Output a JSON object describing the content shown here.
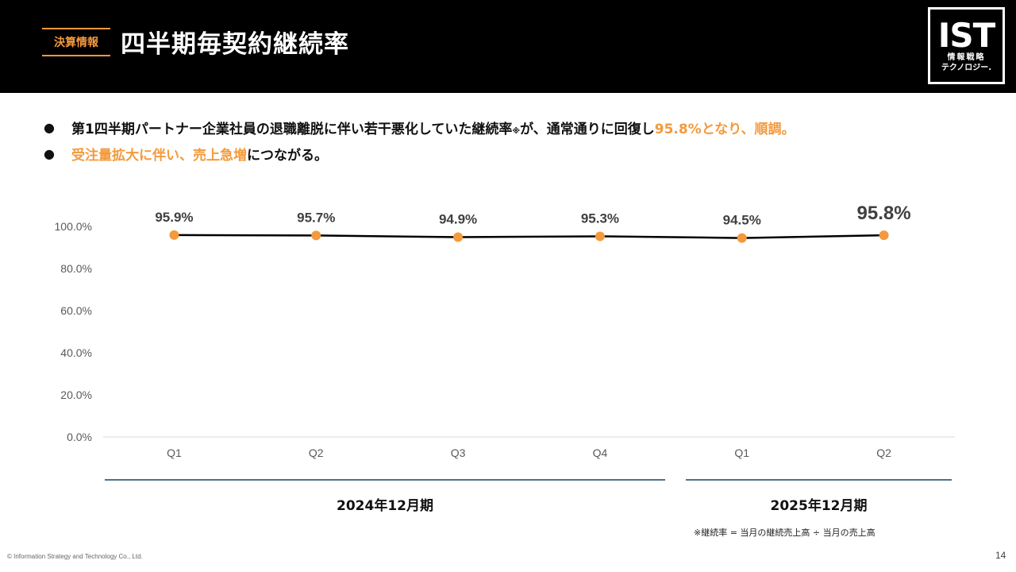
{
  "header": {
    "section_tag": "決算情報",
    "title": "四半期毎契約継続率",
    "logo": {
      "mark": "IST",
      "line1": "情報戦略",
      "line2": "テクノロジー."
    }
  },
  "bullets": {
    "b1": {
      "bullet": "●",
      "text_before": "第1四半期パートナー企業社員の退職離脱に伴い若干悪化していた継続率",
      "note_mark": "※",
      "text_mid": "が、通常通りに回復し",
      "accent": "95.8%となり、順調。"
    },
    "b2": {
      "bullet": "●",
      "accent": "受注量拡大に伴い、売上急増",
      "text_after": "につながる。"
    }
  },
  "chart_data": {
    "type": "line",
    "categories": [
      "Q1",
      "Q2",
      "Q3",
      "Q4",
      "Q1",
      "Q2"
    ],
    "series": [
      {
        "values": [
          95.9,
          95.7,
          94.9,
          95.3,
          94.5,
          95.8
        ],
        "labels": [
          "95.9%",
          "95.7%",
          "94.9%",
          "95.3%",
          "94.5%",
          "95.8%"
        ]
      }
    ],
    "ylim": [
      0,
      100
    ],
    "yticks": [
      0,
      20,
      40,
      60,
      80,
      100
    ],
    "ytick_labels": [
      "0.0%",
      "20.0%",
      "40.0%",
      "60.0%",
      "80.0%",
      "100.0%"
    ],
    "groups": [
      {
        "label": "2024年12月期",
        "count": 4
      },
      {
        "label": "2025年12月期",
        "count": 2
      }
    ],
    "emphasized_index": 5,
    "line_color": "#000000",
    "marker_color": "#f39a3c",
    "grid": false
  },
  "footnote": "※継続率 = 当月の継続売上高 ÷ 当月の売上高",
  "copyright": "© Information Strategy and Technology Co., Ltd.",
  "page_number": "14"
}
